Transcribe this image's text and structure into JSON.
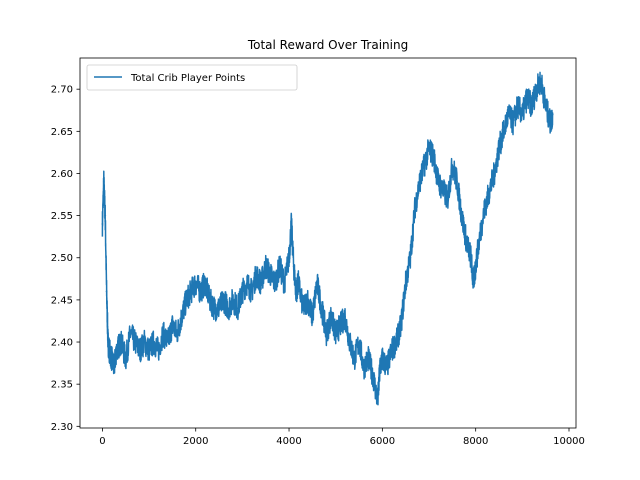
{
  "chart_data": {
    "type": "line",
    "title": "Total Reward Over Training",
    "xlabel": "",
    "ylabel": "",
    "xlim": [
      -480,
      10150
    ],
    "ylim": [
      2.298,
      2.737
    ],
    "x_ticks": [
      0,
      2000,
      4000,
      6000,
      8000,
      10000
    ],
    "x_tick_labels": [
      "0",
      "2000",
      "4000",
      "6000",
      "8000",
      "10000"
    ],
    "y_ticks": [
      2.3,
      2.35,
      2.4,
      2.45,
      2.5,
      2.55,
      2.6,
      2.65,
      2.7
    ],
    "y_tick_labels": [
      "2.30",
      "2.35",
      "2.40",
      "2.45",
      "2.50",
      "2.55",
      "2.60",
      "2.65",
      "2.70"
    ],
    "grid": false,
    "legend_position": "upper left",
    "series": [
      {
        "name": "Total Crib Player Points",
        "color": "#1f77b4",
        "x": [
          0,
          30,
          60,
          90,
          120,
          150,
          200,
          250,
          300,
          400,
          500,
          600,
          700,
          800,
          900,
          1000,
          1100,
          1200,
          1300,
          1400,
          1500,
          1600,
          1700,
          1800,
          1900,
          2000,
          2100,
          2200,
          2300,
          2400,
          2500,
          2600,
          2700,
          2800,
          2900,
          3000,
          3100,
          3200,
          3300,
          3400,
          3500,
          3600,
          3700,
          3800,
          3900,
          4000,
          4050,
          4100,
          4150,
          4200,
          4300,
          4400,
          4500,
          4600,
          4700,
          4800,
          4900,
          5000,
          5100,
          5200,
          5300,
          5400,
          5500,
          5600,
          5700,
          5800,
          5900,
          5950,
          6000,
          6100,
          6200,
          6300,
          6400,
          6500,
          6600,
          6700,
          6800,
          6900,
          7000,
          7100,
          7200,
          7300,
          7400,
          7500,
          7600,
          7700,
          7800,
          7900,
          7950,
          8000,
          8100,
          8200,
          8300,
          8400,
          8500,
          8600,
          8700,
          8800,
          8900,
          9000,
          9100,
          9200,
          9300,
          9400,
          9500,
          9600,
          9650
        ],
        "values": [
          2.54,
          2.59,
          2.55,
          2.46,
          2.4,
          2.39,
          2.38,
          2.37,
          2.39,
          2.4,
          2.38,
          2.41,
          2.4,
          2.39,
          2.4,
          2.39,
          2.4,
          2.39,
          2.41,
          2.4,
          2.42,
          2.41,
          2.43,
          2.45,
          2.46,
          2.47,
          2.46,
          2.47,
          2.45,
          2.44,
          2.44,
          2.45,
          2.44,
          2.45,
          2.44,
          2.46,
          2.47,
          2.46,
          2.48,
          2.47,
          2.49,
          2.48,
          2.47,
          2.49,
          2.47,
          2.5,
          2.54,
          2.49,
          2.46,
          2.47,
          2.44,
          2.45,
          2.43,
          2.47,
          2.44,
          2.41,
          2.43,
          2.41,
          2.42,
          2.43,
          2.4,
          2.38,
          2.4,
          2.37,
          2.38,
          2.36,
          2.33,
          2.37,
          2.38,
          2.37,
          2.39,
          2.4,
          2.42,
          2.47,
          2.5,
          2.56,
          2.59,
          2.61,
          2.63,
          2.62,
          2.59,
          2.58,
          2.57,
          2.61,
          2.59,
          2.55,
          2.52,
          2.5,
          2.47,
          2.49,
          2.53,
          2.56,
          2.58,
          2.6,
          2.63,
          2.65,
          2.67,
          2.66,
          2.68,
          2.67,
          2.69,
          2.68,
          2.7,
          2.71,
          2.68,
          2.66,
          2.67
        ]
      }
    ]
  }
}
